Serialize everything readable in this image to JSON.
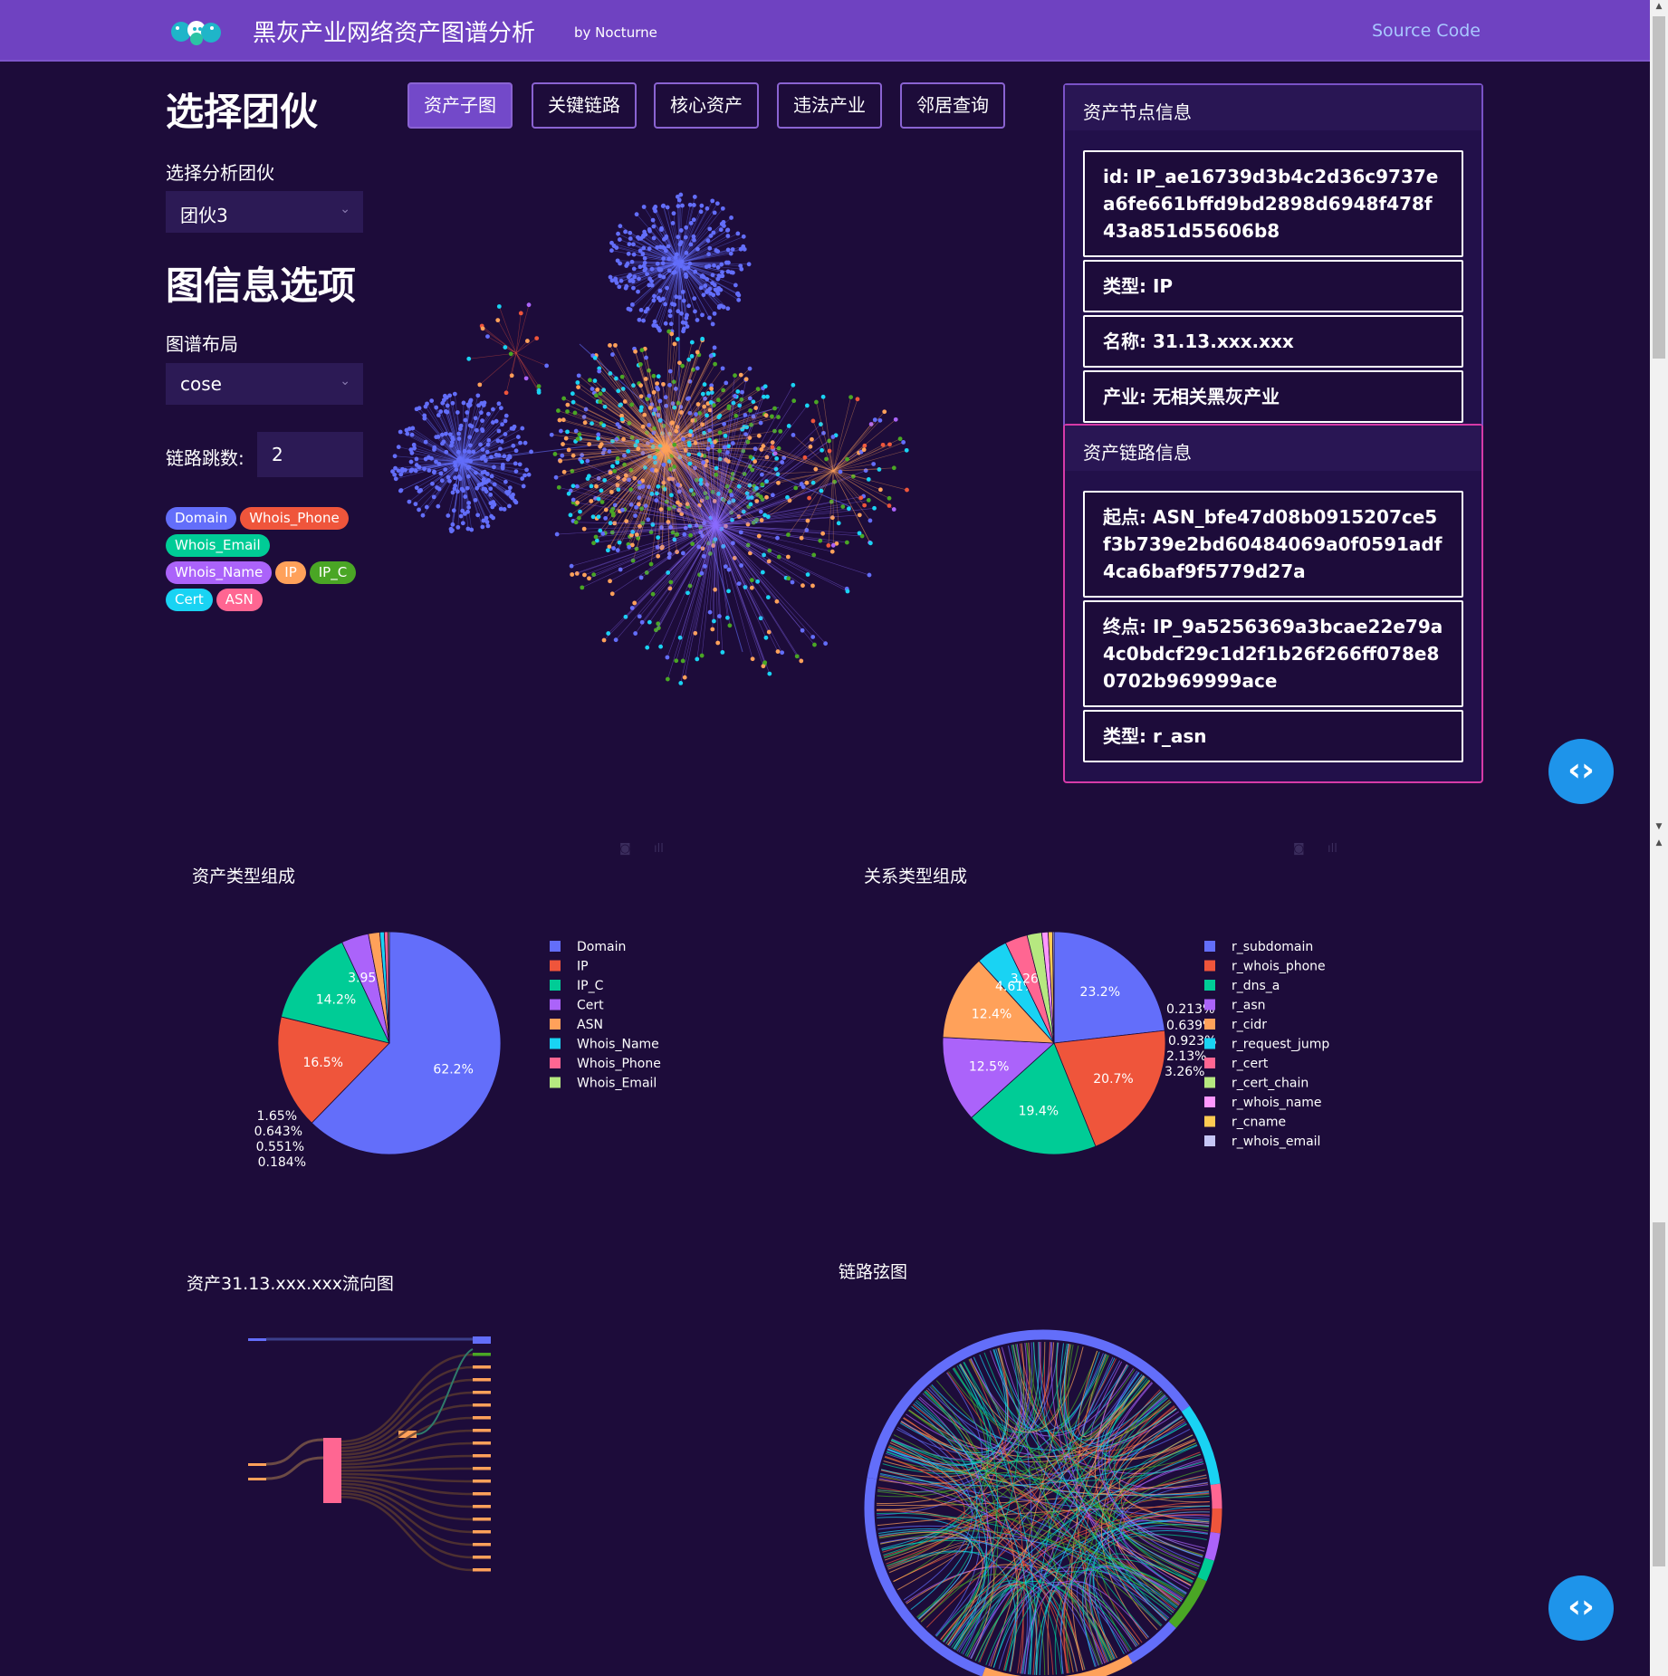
{
  "navbar": {
    "title": "黑灰产业网络资产图谱分析",
    "byline": "by Nocturne",
    "source_code": "Source Code"
  },
  "sidebar": {
    "heading": "选择团伙",
    "gang_label": "选择分析团伙",
    "gang_value": "团伙3",
    "graph_options_heading": "图信息选项",
    "layout_label": "图谱布局",
    "layout_value": "cose",
    "hops_label": "链路跳数:",
    "hops_value": "2",
    "badges": [
      {
        "label": "Domain",
        "color": "#636efa"
      },
      {
        "label": "Whois_Phone",
        "color": "#ef553b"
      },
      {
        "label": "Whois_Email",
        "color": "#00cc96"
      },
      {
        "label": "Whois_Name",
        "color": "#ab63fa"
      },
      {
        "label": "IP",
        "color": "#ffa15a"
      },
      {
        "label": "IP_C",
        "color": "#4aa625"
      },
      {
        "label": "Cert",
        "color": "#19d3f3"
      },
      {
        "label": "ASN",
        "color": "#ff6692"
      }
    ]
  },
  "tabs": [
    {
      "label": "资产子图",
      "active": true
    },
    {
      "label": "关键链路",
      "active": false
    },
    {
      "label": "核心资产",
      "active": false
    },
    {
      "label": "违法产业",
      "active": false
    },
    {
      "label": "邻居查询",
      "active": false
    }
  ],
  "node_info": {
    "title": "资产节点信息",
    "rows": [
      "id: IP_ae16739d3b4c2d36c9737ea6fe661bffd9bd2898d6948f478f43a851d55606b8",
      "类型: IP",
      "名称: 31.13.xxx.xxx",
      "产业: 无相关黑灰产业"
    ]
  },
  "link_info": {
    "title": "资产链路信息",
    "rows": [
      "起点: ASN_bfe47d08b0915207ce5f3b739e2bd60484069a0f0591adf4ca6baf9f5779d27a",
      "终点: IP_9a5256369a3bcae22e79a4c0bdcf29c1d2f1b26f266ff078e80702b969999ace",
      "类型: r_asn"
    ]
  },
  "charts": {
    "asset_type_title": "资产类型组成",
    "relation_type_title": "关系类型组成",
    "flow_title": "资产31.13.xxx.xxx流向图",
    "chord_title": "链路弦图"
  },
  "chart_data": [
    {
      "type": "pie",
      "title": "资产类型组成",
      "categories": [
        "Domain",
        "IP",
        "IP_C",
        "Cert",
        "ASN",
        "Whois_Name",
        "Whois_Phone",
        "Whois_Email"
      ],
      "values": [
        62.2,
        16.5,
        14.2,
        3.95,
        1.65,
        0.643,
        0.551,
        0.184
      ],
      "labels": [
        "62.2%",
        "16.5%",
        "14.2%",
        "3.95%",
        "1.65%",
        "0.643%",
        "0.551%",
        "0.184%"
      ],
      "colors": [
        "#636efa",
        "#ef553b",
        "#00cc96",
        "#ab63fa",
        "#ffa15a",
        "#19d3f3",
        "#ff6692",
        "#b6e880"
      ]
    },
    {
      "type": "pie",
      "title": "关系类型组成",
      "categories": [
        "r_subdomain",
        "r_whois_phone",
        "r_dns_a",
        "r_asn",
        "r_cidr",
        "r_request_jump",
        "r_cert",
        "r_cert_chain",
        "r_whois_name",
        "r_cname",
        "r_whois_email"
      ],
      "values": [
        23.2,
        20.7,
        19.4,
        12.5,
        12.4,
        4.61,
        3.26,
        2.13,
        0.923,
        0.639,
        0.213
      ],
      "labels": [
        "23.2%",
        "20.7%",
        "19.4%",
        "12.5%",
        "12.4%",
        "4.61%",
        "3.26%",
        "2.13%",
        "0.923%",
        "0.639%",
        "0.213%"
      ],
      "colors": [
        "#636efa",
        "#ef553b",
        "#00cc96",
        "#ab63fa",
        "#ffa15a",
        "#19d3f3",
        "#ff6692",
        "#b6e880",
        "#ff97ff",
        "#fecb52",
        "#c6c6f6"
      ]
    }
  ]
}
